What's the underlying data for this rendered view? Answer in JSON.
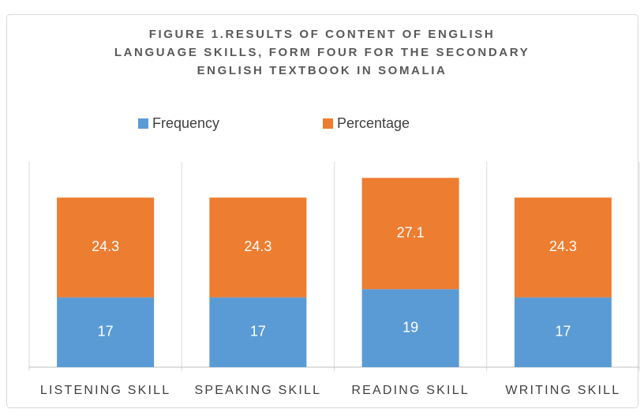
{
  "chart_data": {
    "type": "stacked_bar",
    "title": [
      "FIGURE 1.RESULTS OF CONTENT OF ENGLISH",
      "LANGUAGE SKILLS, FORM FOUR FOR THE SECONDARY",
      "ENGLISH TEXTBOOK IN SOMALIA"
    ],
    "categories": [
      "LISTENING SKILL",
      "SPEAKING SKILL",
      "READING SKILL",
      "WRITING SKILL"
    ],
    "series": [
      {
        "name": "Frequency",
        "color": "#5b9bd5",
        "values": [
          17,
          17,
          19,
          17
        ]
      },
      {
        "name": "Percentage",
        "color": "#ed7d31",
        "values": [
          24.3,
          24.3,
          27.1,
          24.3
        ]
      }
    ],
    "ylim": [
      0,
      50
    ]
  }
}
